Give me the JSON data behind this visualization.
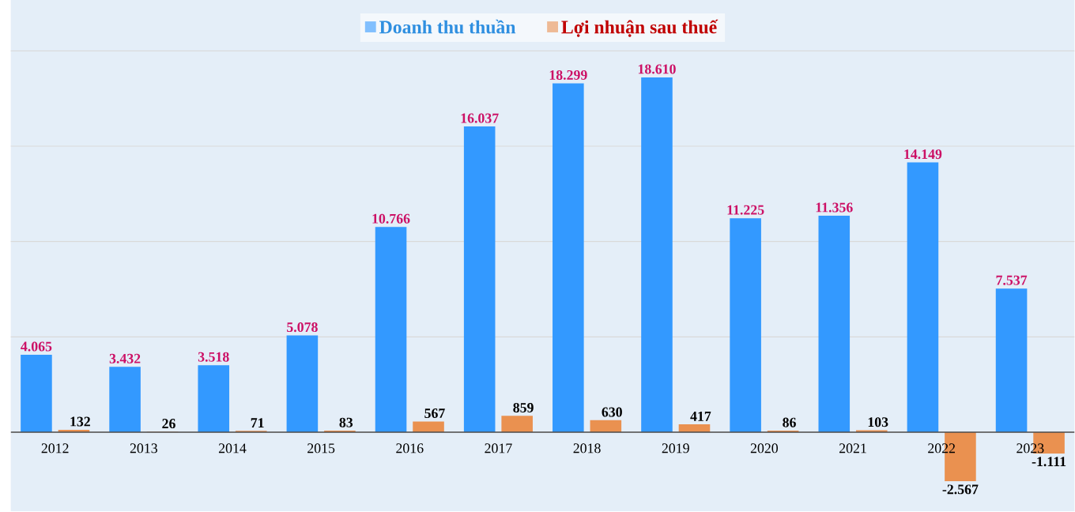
{
  "chart_data": {
    "type": "bar",
    "categories": [
      "2012",
      "2013",
      "2014",
      "2015",
      "2016",
      "2017",
      "2018",
      "2019",
      "2020",
      "2021",
      "2022",
      "2023"
    ],
    "series": [
      {
        "name": "Doanh thu thuần",
        "color": "#3399ff",
        "values": [
          4065,
          3432,
          3518,
          5078,
          10766,
          16037,
          18299,
          18610,
          11225,
          11356,
          14149,
          7537
        ],
        "value_labels": [
          "4.065",
          "3.432",
          "3.518",
          "5.078",
          "10.766",
          "16.037",
          "18.299",
          "18.610",
          "11.225",
          "11.356",
          "14.149",
          "7.537"
        ]
      },
      {
        "name": "Lợi nhuận sau thuế",
        "color": "#ea9150",
        "values": [
          132,
          26,
          71,
          83,
          567,
          859,
          630,
          417,
          86,
          103,
          -2567,
          -1111
        ],
        "value_labels": [
          "132",
          "26",
          "71",
          "83",
          "567",
          "859",
          "630",
          "417",
          "86",
          "103",
          "-2.567",
          "-1.111"
        ]
      }
    ],
    "yticks": [
      {
        "value": 0,
        "label": null
      },
      {
        "value": 5000,
        "label": null
      },
      {
        "value": 10000,
        "label": null
      },
      {
        "value": 15000,
        "label": null
      },
      {
        "value": 20000,
        "label": null
      }
    ],
    "tick_labels": "x",
    "grid": "y",
    "legend": "top"
  }
}
